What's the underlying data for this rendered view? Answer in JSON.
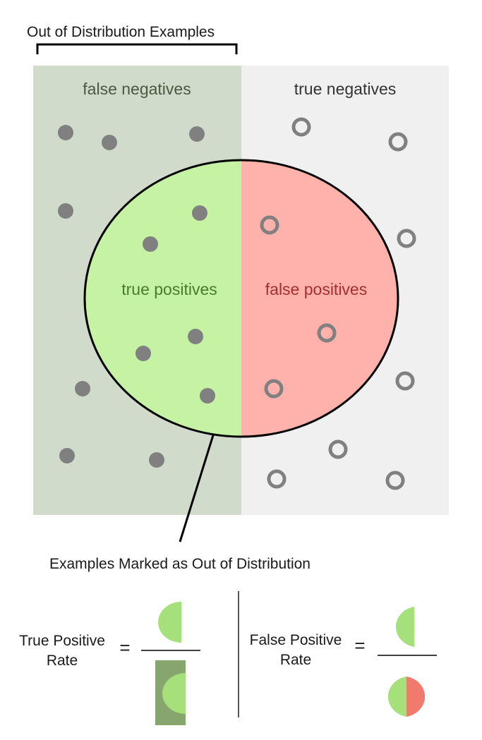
{
  "header": {
    "label": "Out of Distribution Examples"
  },
  "regions": {
    "false_negatives": "false negatives",
    "true_negatives": "true negatives",
    "true_positives": "true positives",
    "false_positives": "false positives"
  },
  "pointer_label": "Examples Marked as Out of Distribution",
  "formulas": {
    "tpr": {
      "line1": "True Positive",
      "line2": "Rate",
      "equals": "="
    },
    "fpr": {
      "line1": "False Positive",
      "line2": "Rate",
      "equals": "="
    }
  },
  "colors": {
    "ood_region": "#d1dbcb",
    "in_dist_region": "#f0f0f0",
    "true_positive_fill": "#c6f2a4",
    "false_positive_fill": "#ffb2ab",
    "filled_dot": "#808080",
    "hollow_dot_stroke": "#808080",
    "tp_half": "#a6e07a",
    "fp_half": "#f07a6e",
    "ood_block": "#87a66e",
    "fn_label": "#4a5a41",
    "tn_label": "#333333",
    "tp_label": "#4a7a2d",
    "fp_label": "#a33030"
  }
}
